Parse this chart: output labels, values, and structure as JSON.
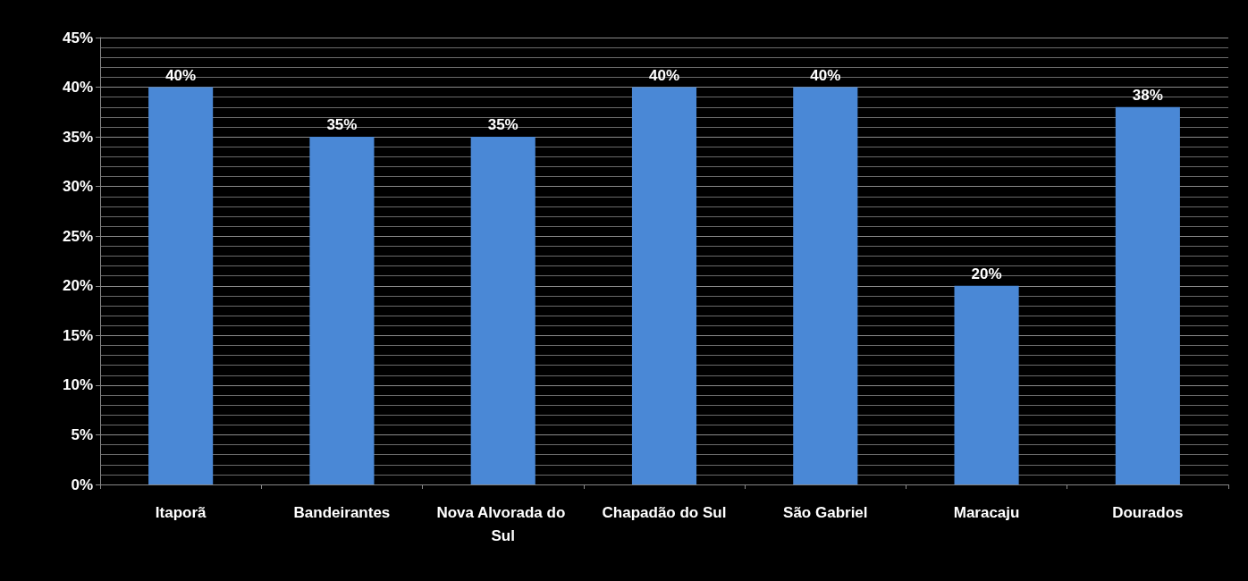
{
  "chart_data": {
    "type": "bar",
    "categories": [
      "Itaporã",
      "Bandeirantes",
      "Nova Alvorada do Sul",
      "Chapadão do Sul",
      "São Gabriel",
      "Maracaju",
      "Dourados"
    ],
    "values": [
      40,
      35,
      35,
      40,
      40,
      20,
      38
    ],
    "color": "#4a88d6",
    "value_labels": [
      "40%",
      "35%",
      "35%",
      "40%",
      "40%",
      "20%",
      "38%"
    ],
    "ylim": [
      0,
      45
    ],
    "yticks": [
      {
        "value": 0,
        "label": "0%"
      },
      {
        "value": 5,
        "label": "5%"
      },
      {
        "value": 10,
        "label": "10%"
      },
      {
        "value": 15,
        "label": "15%"
      },
      {
        "value": 20,
        "label": "20%"
      },
      {
        "value": 25,
        "label": "25%"
      },
      {
        "value": 30,
        "label": "30%"
      },
      {
        "value": 35,
        "label": "35%"
      },
      {
        "value": 40,
        "label": "40%"
      },
      {
        "value": 45,
        "label": "45%"
      }
    ],
    "grid": "y"
  }
}
